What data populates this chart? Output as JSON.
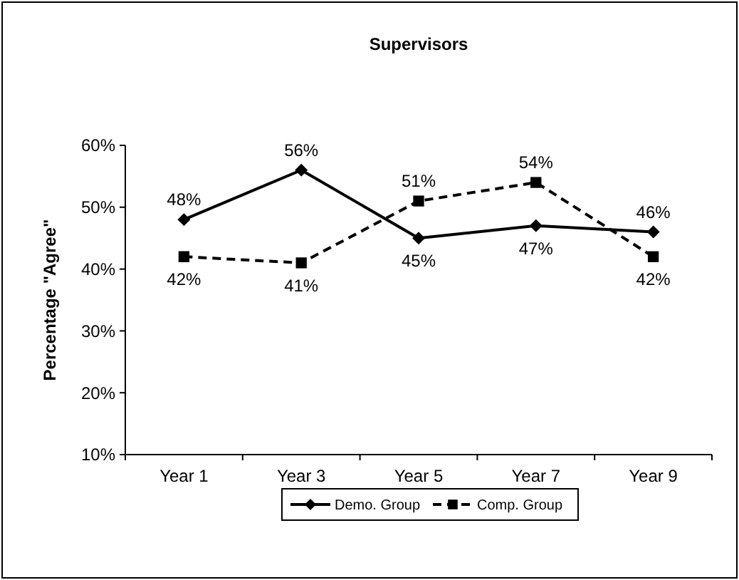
{
  "chart_data": {
    "type": "line",
    "title": "Supervisors",
    "ylabel": "Percentage \"Agree\"",
    "categories": [
      "Year 1",
      "Year 3",
      "Year 5",
      "Year 7",
      "Year 9"
    ],
    "series": [
      {
        "name": "Demo. Group",
        "color": "#000000",
        "marker": "diamond",
        "line_style": "solid",
        "values": [
          48,
          56,
          45,
          47,
          46
        ],
        "value_labels": [
          "48%",
          "56%",
          "45%",
          "47%",
          "46%"
        ]
      },
      {
        "name": "Comp. Group",
        "color": "#000000",
        "marker": "square",
        "line_style": "dashed",
        "values": [
          42,
          41,
          51,
          54,
          42
        ],
        "value_labels": [
          "42%",
          "41%",
          "51%",
          "54%",
          "42%"
        ]
      }
    ],
    "ylim": [
      10,
      60
    ],
    "yticks": [
      {
        "value": 10,
        "label": "10%"
      },
      {
        "value": 20,
        "label": "20%"
      },
      {
        "value": 30,
        "label": "30%"
      },
      {
        "value": 40,
        "label": "40%"
      },
      {
        "value": 50,
        "label": "50%"
      },
      {
        "value": 60,
        "label": "60%"
      }
    ],
    "grid": false,
    "legend": "bottom"
  }
}
